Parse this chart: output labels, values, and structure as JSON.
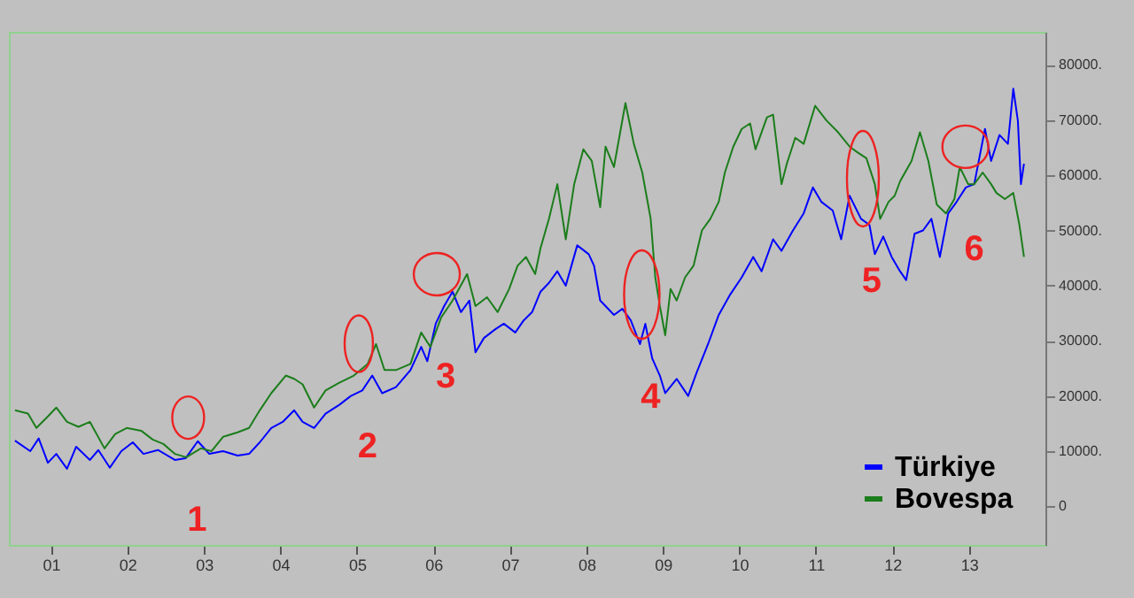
{
  "chart_data": {
    "type": "line",
    "series": [
      {
        "name": "Türkiye",
        "color": "#0000ff",
        "x": [
          2000.53,
          2000.73,
          2000.84,
          2000.96,
          2001.07,
          2001.21,
          2001.33,
          2001.51,
          2001.62,
          2001.77,
          2001.92,
          2002.07,
          2002.21,
          2002.4,
          2002.62,
          2002.76,
          2002.92,
          2003.07,
          2003.25,
          2003.44,
          2003.59,
          2003.73,
          2003.88,
          2004.03,
          2004.18,
          2004.29,
          2004.44,
          2004.59,
          2004.77,
          2004.92,
          2005.07,
          2005.2,
          2005.33,
          2005.51,
          2005.7,
          2005.84,
          2005.92,
          2006.03,
          2006.14,
          2006.25,
          2006.36,
          2006.47,
          2006.55,
          2006.66,
          2006.81,
          2006.92,
          2007.07,
          2007.18,
          2007.29,
          2007.4,
          2007.51,
          2007.62,
          2007.73,
          2007.88,
          2008.03,
          2008.1,
          2008.18,
          2008.25,
          2008.36,
          2008.47,
          2008.58,
          2008.7,
          2008.77,
          2008.86,
          2008.96,
          2009.03,
          2009.18,
          2009.33,
          2009.44,
          2009.59,
          2009.73,
          2009.88,
          2010.03,
          2010.18,
          2010.29,
          2010.44,
          2010.55,
          2010.7,
          2010.84,
          2010.96,
          2011.07,
          2011.22,
          2011.33,
          2011.44,
          2011.59,
          2011.7,
          2011.77,
          2011.88,
          2011.99,
          2012.1,
          2012.18,
          2012.29,
          2012.4,
          2012.51,
          2012.62,
          2012.73,
          2012.84,
          2012.96,
          2013.07,
          2013.21,
          2013.29,
          2013.4,
          2013.51,
          2013.58,
          2013.64,
          2013.68,
          2013.72
        ],
        "values": [
          11900,
          10000,
          12300,
          7900,
          9500,
          6800,
          10800,
          8400,
          10200,
          7000,
          10000,
          11600,
          9500,
          10200,
          8400,
          8700,
          11800,
          9500,
          10000,
          9200,
          9500,
          11600,
          14200,
          15300,
          17400,
          15300,
          14200,
          16800,
          18400,
          20000,
          21000,
          23700,
          20500,
          21600,
          24700,
          28900,
          26300,
          33100,
          36300,
          38900,
          35200,
          37300,
          27900,
          30500,
          32100,
          33100,
          31500,
          33700,
          35200,
          38900,
          40500,
          42600,
          40000,
          47300,
          45700,
          43600,
          37300,
          36300,
          34700,
          35800,
          33700,
          29400,
          33100,
          26800,
          23700,
          20500,
          23100,
          20000,
          24200,
          29400,
          34700,
          38400,
          41500,
          45200,
          42600,
          48400,
          46300,
          50000,
          53100,
          57800,
          55200,
          53600,
          48400,
          56300,
          52100,
          51000,
          45700,
          48900,
          45200,
          42600,
          41000,
          49400,
          50000,
          52100,
          45200,
          53100,
          55200,
          57800,
          58400,
          68400,
          62600,
          67300,
          65700,
          75700,
          69900,
          58400,
          62100
        ]
      },
      {
        "name": "Bovespa",
        "color": "#1b7d1b",
        "x": [
          2000.53,
          2000.7,
          2000.81,
          2000.96,
          2001.07,
          2001.21,
          2001.36,
          2001.51,
          2001.7,
          2001.84,
          2001.99,
          2002.18,
          2002.33,
          2002.47,
          2002.62,
          2002.77,
          2002.96,
          2003.1,
          2003.25,
          2003.44,
          2003.59,
          2003.73,
          2003.88,
          2004.07,
          2004.18,
          2004.29,
          2004.44,
          2004.59,
          2004.77,
          2004.96,
          2005.14,
          2005.25,
          2005.36,
          2005.51,
          2005.7,
          2005.84,
          2005.96,
          2006.1,
          2006.25,
          2006.44,
          2006.55,
          2006.7,
          2006.84,
          2006.99,
          2007.1,
          2007.21,
          2007.33,
          2007.4,
          2007.51,
          2007.62,
          2007.73,
          2007.84,
          2007.96,
          2008.07,
          2008.18,
          2008.25,
          2008.36,
          2008.51,
          2008.62,
          2008.73,
          2008.84,
          2008.9,
          2008.96,
          2009.03,
          2009.1,
          2009.18,
          2009.29,
          2009.4,
          2009.51,
          2009.62,
          2009.73,
          2009.81,
          2009.92,
          2010.03,
          2010.14,
          2010.21,
          2010.36,
          2010.44,
          2010.55,
          2010.62,
          2010.73,
          2010.84,
          2010.99,
          2011.14,
          2011.29,
          2011.44,
          2011.55,
          2011.66,
          2011.77,
          2011.84,
          2011.95,
          2012.03,
          2012.1,
          2012.25,
          2012.36,
          2012.47,
          2012.58,
          2012.7,
          2012.81,
          2012.88,
          2012.99,
          2013.07,
          2013.18,
          2013.29,
          2013.36,
          2013.47,
          2013.58,
          2013.66,
          2013.72
        ],
        "values": [
          17400,
          16800,
          14200,
          16300,
          17900,
          15300,
          14400,
          15300,
          10500,
          13100,
          14200,
          13700,
          12100,
          11300,
          9500,
          8900,
          10500,
          10000,
          12600,
          13400,
          14200,
          17400,
          20500,
          23700,
          23100,
          22100,
          17900,
          21000,
          22400,
          23700,
          25800,
          29400,
          24700,
          24700,
          25800,
          31500,
          28900,
          34200,
          37300,
          42100,
          36300,
          37900,
          35200,
          39400,
          43600,
          45200,
          42100,
          46800,
          52100,
          58400,
          48400,
          58400,
          64700,
          62600,
          54200,
          65200,
          61500,
          73100,
          65700,
          60500,
          52100,
          41500,
          36300,
          31000,
          39400,
          37300,
          41500,
          43600,
          50000,
          52100,
          55200,
          60500,
          65200,
          68400,
          69400,
          64700,
          70500,
          71000,
          58400,
          62100,
          66800,
          65700,
          72600,
          69900,
          67800,
          65200,
          64100,
          63100,
          58400,
          52100,
          55200,
          56300,
          58900,
          62600,
          67800,
          62600,
          54700,
          53100,
          55700,
          61500,
          58400,
          58400,
          60500,
          58400,
          56800,
          55700,
          56800,
          51000,
          45200
        ]
      }
    ],
    "xlim": [
      2000.45,
      2014.0
    ],
    "xticks": [
      {
        "value": 2001,
        "label": "01"
      },
      {
        "value": 2002,
        "label": "02"
      },
      {
        "value": 2003,
        "label": "03"
      },
      {
        "value": 2004,
        "label": "04"
      },
      {
        "value": 2005,
        "label": "05"
      },
      {
        "value": 2006,
        "label": "06"
      },
      {
        "value": 2007,
        "label": "07"
      },
      {
        "value": 2008,
        "label": "08"
      },
      {
        "value": 2009,
        "label": "09"
      },
      {
        "value": 2010,
        "label": "10"
      },
      {
        "value": 2011,
        "label": "11"
      },
      {
        "value": 2012,
        "label": "12"
      },
      {
        "value": 2013,
        "label": "13"
      }
    ],
    "ylim": [
      -7000,
      86000
    ],
    "yticks": [
      0,
      {
        "value": 10000,
        "label": "10000."
      },
      {
        "value": 20000,
        "label": "20000."
      },
      {
        "value": 30000,
        "label": "30000."
      },
      {
        "value": 40000,
        "label": "40000."
      },
      {
        "value": 50000,
        "label": "50000."
      },
      {
        "value": 60000,
        "label": "60000."
      },
      {
        "value": 70000,
        "label": "70000."
      },
      {
        "value": 80000,
        "label": "80000."
      }
    ],
    "legend": "bottom right",
    "annotations": [
      {
        "text": "1",
        "x": 2002.91,
        "y": 10300
      },
      {
        "text": "2",
        "x": 2005.14,
        "y": 23700
      },
      {
        "text": "3",
        "x": 2006.16,
        "y": 36300
      },
      {
        "text": "4",
        "x": 2008.84,
        "y": 32600
      },
      {
        "text": "5",
        "x": 2011.73,
        "y": 53600
      },
      {
        "text": "6",
        "x": 2013.07,
        "y": 59400
      }
    ]
  }
}
